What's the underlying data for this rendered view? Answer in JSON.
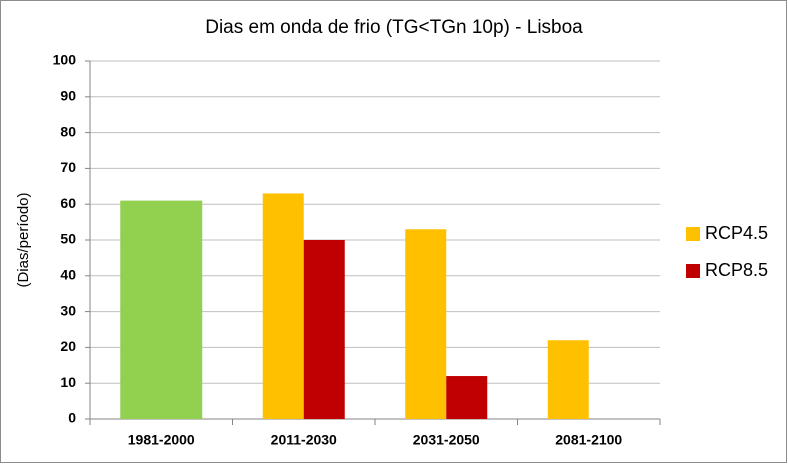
{
  "chart_data": {
    "type": "bar",
    "title": "Dias em onda de frio (TG<TGn 10p) - Lisboa",
    "y_label": "(Dias/período)",
    "categories": [
      "1981-2000",
      "2011-2030",
      "2031-2050",
      "2081-2100"
    ],
    "series": [
      {
        "color": "#92d050",
        "values": [
          61,
          null,
          null,
          null
        ]
      },
      {
        "name": "RCP4.5",
        "color": "#ffc000",
        "values": [
          null,
          63,
          53,
          22
        ]
      },
      {
        "name": "RCP8.5",
        "color": "#c00000",
        "values": [
          null,
          50,
          12,
          null
        ]
      }
    ],
    "ylim": [
      0,
      100
    ],
    "yticks": [
      0,
      10,
      20,
      30,
      40,
      50,
      60,
      70,
      80,
      90,
      100
    ],
    "grid": true,
    "legend": "right"
  }
}
